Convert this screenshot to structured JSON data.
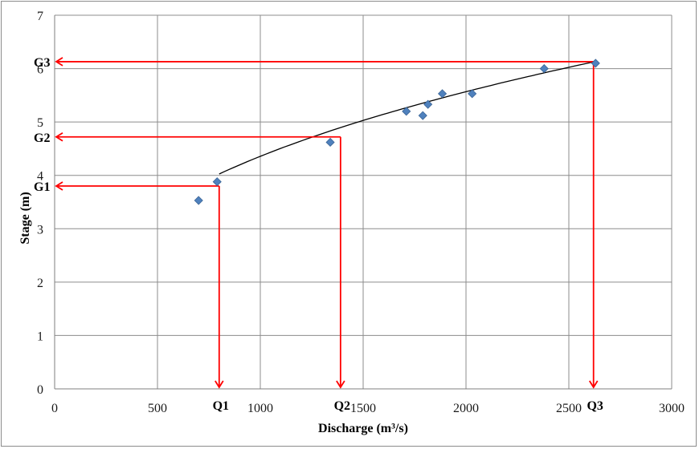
{
  "chart_data": {
    "type": "scatter",
    "xlabel": "Discharge (m³/s)",
    "ylabel": "Stage (m)",
    "xlim": [
      0,
      3000
    ],
    "ylim": [
      0,
      7
    ],
    "xticks": [
      0,
      500,
      1000,
      1500,
      2000,
      2500,
      3000
    ],
    "yticks": [
      0,
      1,
      2,
      3,
      4,
      5,
      6,
      7
    ],
    "grid": true,
    "colors": {
      "points": "#4f81bd",
      "points_edge": "#3a6496",
      "arrows": "#ff0000",
      "curve": "#000000",
      "grid": "#8c8c8c"
    },
    "points": [
      {
        "x": 700,
        "y": 3.53
      },
      {
        "x": 790,
        "y": 3.88
      },
      {
        "x": 1340,
        "y": 4.62
      },
      {
        "x": 1710,
        "y": 5.2
      },
      {
        "x": 1790,
        "y": 5.12
      },
      {
        "x": 1815,
        "y": 5.33
      },
      {
        "x": 1885,
        "y": 5.53
      },
      {
        "x": 2030,
        "y": 5.53
      },
      {
        "x": 2380,
        "y": 6.0
      },
      {
        "x": 2630,
        "y": 6.1
      }
    ],
    "fit_curve": {
      "a": 0.3785,
      "b": 0.3537,
      "x_range": [
        800,
        2620
      ]
    },
    "reference_lines": [
      {
        "stage_label": "G1",
        "discharge_label": "Q1",
        "x": 800,
        "y": 3.8
      },
      {
        "stage_label": "G2",
        "discharge_label": "Q2",
        "x": 1390,
        "y": 4.72
      },
      {
        "stage_label": "G3",
        "discharge_label": "Q3",
        "x": 2620,
        "y": 6.13
      }
    ]
  }
}
